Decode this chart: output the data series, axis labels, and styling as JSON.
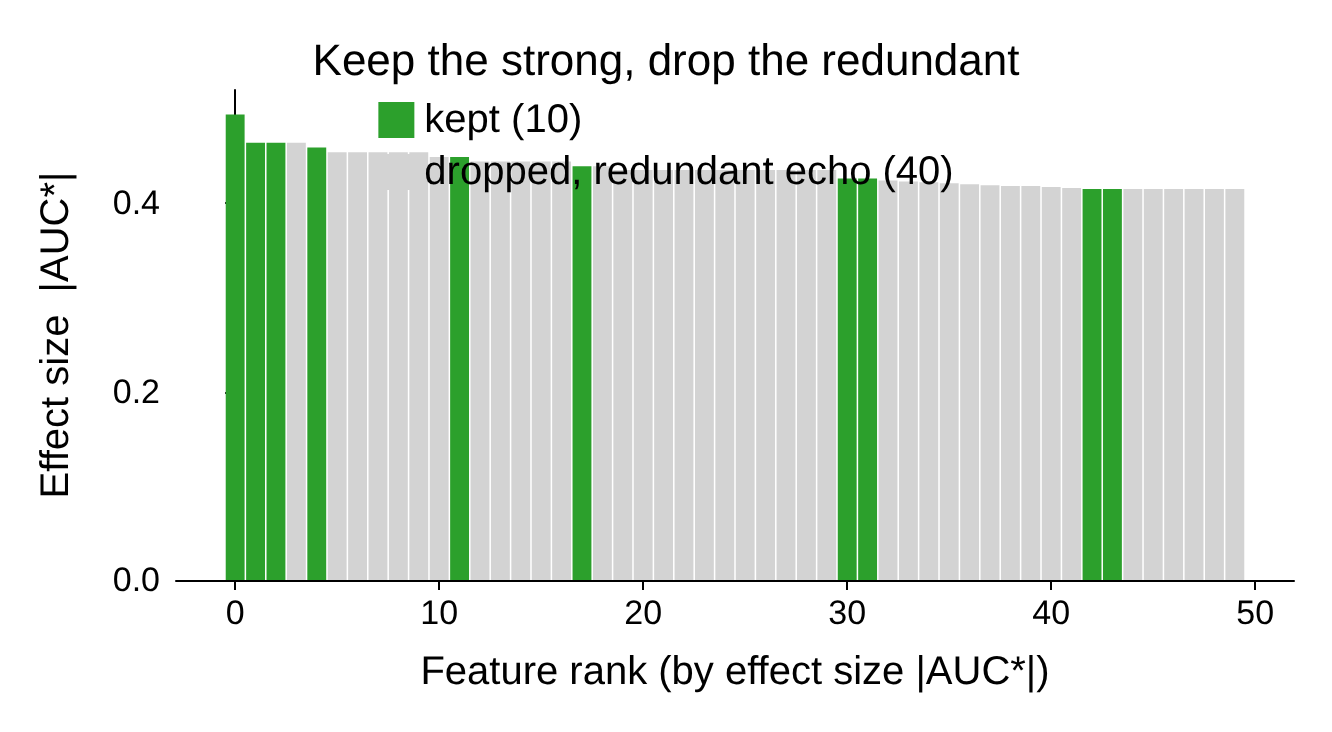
{
  "chart_data": {
    "type": "bar",
    "title": "Keep the strong, drop the redundant",
    "xlabel": "Feature rank (by effect size |AUC*|)",
    "ylabel": "Effect size  |AUC*|",
    "xlim": [
      -2.9,
      51.9
    ],
    "xticks": [
      0,
      10,
      20,
      30,
      40,
      50
    ],
    "ylim": [
      0,
      0.52
    ],
    "yticks": [
      {
        "value": 0,
        "label": "0.0"
      },
      {
        "value": 0.2,
        "label": "0.2"
      },
      {
        "value": 0.4,
        "label": "0.4"
      }
    ],
    "series": [
      {
        "name": "kept (10)",
        "color": "#2ca02c",
        "x": [
          0,
          1,
          2,
          4,
          11,
          17,
          30,
          31,
          42,
          43
        ],
        "values": [
          0.494,
          0.464,
          0.464,
          0.459,
          0.449,
          0.439,
          0.426,
          0.426,
          0.415,
          0.415
        ]
      },
      {
        "name": "dropped, redundant echo (40)",
        "color": "#d3d3d3",
        "x": [
          3,
          5,
          6,
          7,
          8,
          9,
          10,
          12,
          13,
          14,
          15,
          16,
          18,
          19,
          20,
          21,
          22,
          23,
          24,
          25,
          26,
          27,
          28,
          29,
          32,
          33,
          34,
          35,
          36,
          37,
          38,
          39,
          40,
          41,
          44,
          45,
          46,
          47,
          48,
          49
        ],
        "values": [
          0.464,
          0.454,
          0.454,
          0.454,
          0.454,
          0.454,
          0.449,
          0.444,
          0.444,
          0.444,
          0.444,
          0.444,
          0.439,
          0.435,
          0.435,
          0.435,
          0.435,
          0.435,
          0.435,
          0.435,
          0.435,
          0.435,
          0.435,
          0.435,
          0.424,
          0.423,
          0.422,
          0.421,
          0.42,
          0.419,
          0.418,
          0.418,
          0.417,
          0.416,
          0.415,
          0.415,
          0.415,
          0.415,
          0.415,
          0.415
        ]
      }
    ],
    "grid": false,
    "legend": "top"
  }
}
